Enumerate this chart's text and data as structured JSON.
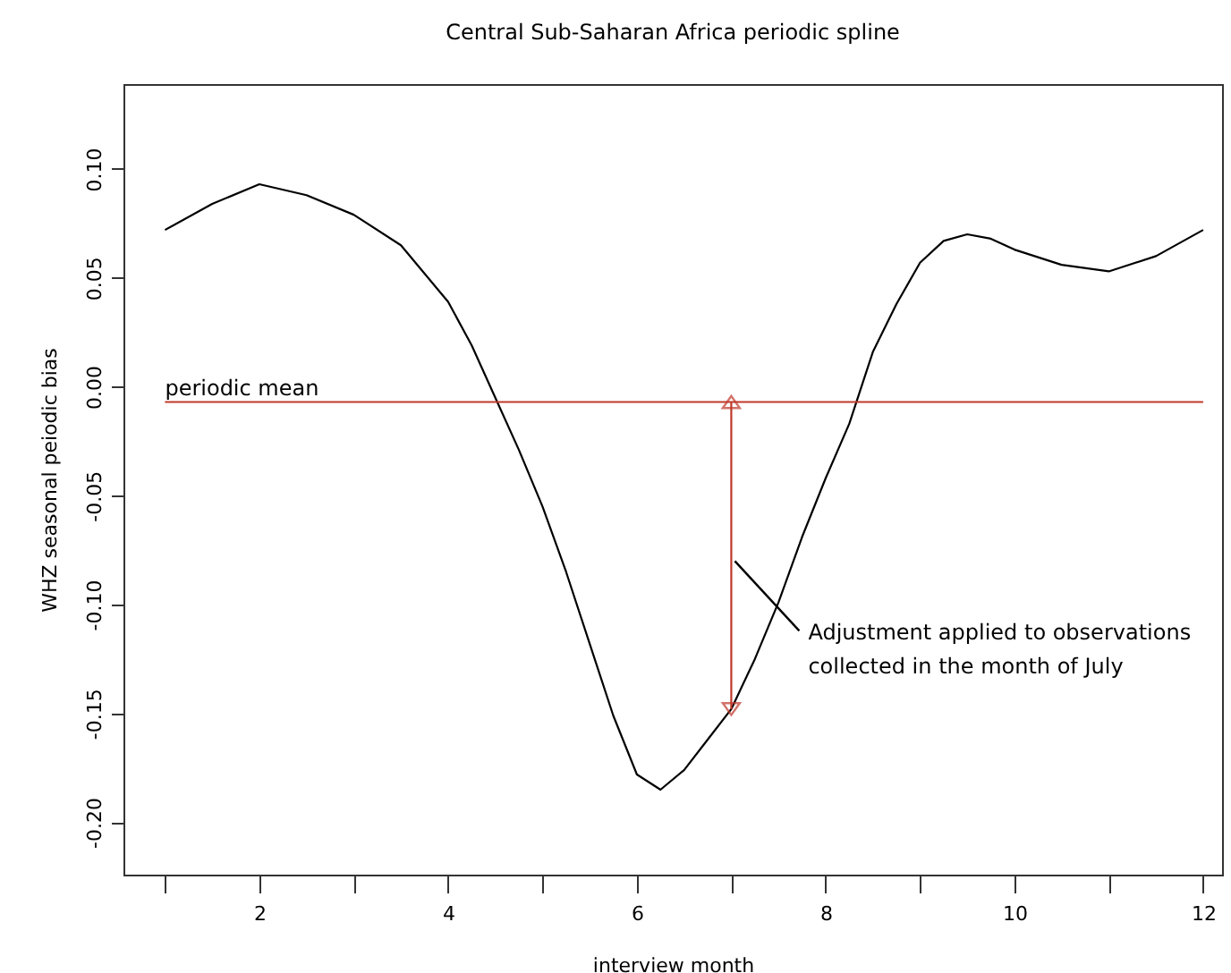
{
  "chart_data": {
    "type": "line",
    "title": "Central Sub-Saharan Africa periodic spline",
    "xlabel": "interview month",
    "ylabel": "WHZ seasonal peiodic bias",
    "series": [
      {
        "color": "#000000",
        "x": [
          1,
          1.5,
          2,
          2.5,
          3,
          3.5,
          4,
          4.25,
          4.5,
          4.75,
          5,
          5.25,
          5.5,
          5.75,
          6,
          6.25,
          6.5,
          6.75,
          7,
          7.25,
          7.5,
          7.75,
          8,
          8.25,
          8.5,
          8.75,
          9,
          9.25,
          9.5,
          9.75,
          10,
          10.5,
          11,
          11.5,
          12
        ],
        "values": [
          0.072,
          0.084,
          0.093,
          0.088,
          0.079,
          0.065,
          0.039,
          0.019,
          -0.005,
          -0.029,
          -0.055,
          -0.085,
          -0.118,
          -0.151,
          -0.178,
          -0.185,
          -0.176,
          -0.162,
          -0.148,
          -0.125,
          -0.099,
          -0.069,
          -0.042,
          -0.017,
          0.016,
          0.038,
          0.057,
          0.067,
          0.07,
          0.068,
          0.063,
          0.056,
          0.053,
          0.06,
          0.072
        ]
      },
      {
        "color": "#c0392b",
        "x": [
          7,
          7
        ],
        "values": [
          -0.007,
          -0.148
        ],
        "marker": "triangle"
      }
    ],
    "ref_lines": [
      {
        "axis": "y",
        "value": -0.007,
        "label": "periodic mean",
        "color": "#c0392b"
      }
    ],
    "annotations": [
      {
        "text": "Adjustment applied to observations collected in the month of July",
        "x": 7,
        "y": -0.08
      }
    ],
    "xlim": [
      0.56,
      12.2
    ],
    "xticks": [
      {
        "value": 1,
        "label": null
      },
      2,
      {
        "value": 3,
        "label": null
      },
      4,
      {
        "value": 5,
        "label": null
      },
      6,
      {
        "value": 7,
        "label": null
      },
      8,
      {
        "value": 9,
        "label": null
      },
      10,
      {
        "value": 11,
        "label": null
      },
      12
    ],
    "ylim": [
      -0.224,
      0.139
    ],
    "yticks": [
      {
        "value": -0.2,
        "label": "-0.20"
      },
      {
        "value": -0.15,
        "label": "-0.15"
      },
      {
        "value": -0.1,
        "label": "-0.10"
      },
      {
        "value": -0.05,
        "label": "-0.05"
      },
      {
        "value": 0,
        "label": "0.00"
      },
      {
        "value": 0.05,
        "label": "0.05"
      },
      {
        "value": 0.1,
        "label": "0.10"
      }
    ],
    "grid": false,
    "marker": "none",
    "line_style": "solid"
  }
}
